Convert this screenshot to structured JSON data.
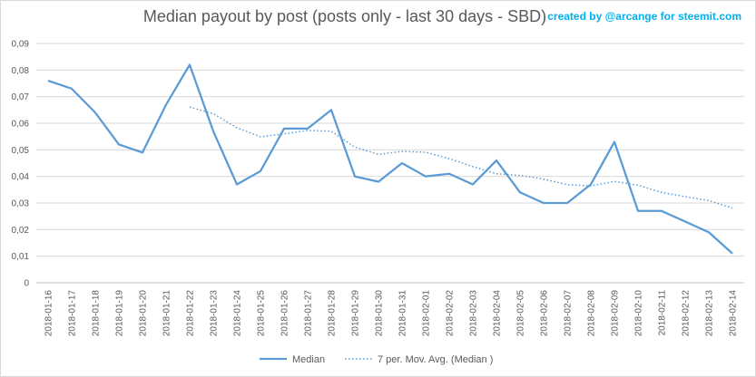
{
  "chart_data": {
    "type": "line",
    "title": "Median payout by post (posts only - last 30 days - SBD)",
    "credit": "created by @arcange for steemit.com",
    "x": [
      "2018-01-16",
      "2018-01-17",
      "2018-01-18",
      "2018-01-19",
      "2018-01-20",
      "2018-01-21",
      "2018-01-22",
      "2018-01-23",
      "2018-01-24",
      "2018-01-25",
      "2018-01-26",
      "2018-01-27",
      "2018-01-28",
      "2018-01-29",
      "2018-01-30",
      "2018-01-31",
      "2018-02-01",
      "2018-02-02",
      "2018-02-03",
      "2018-02-04",
      "2018-02-05",
      "2018-02-06",
      "2018-02-07",
      "2018-02-08",
      "2018-02-09",
      "2018-02-10",
      "2018-02-11",
      "2018-02-12",
      "2018-02-13",
      "2018-02-14"
    ],
    "yticks": [
      "0",
      "0,01",
      "0,02",
      "0,03",
      "0,04",
      "0,05",
      "0,06",
      "0,07",
      "0,08",
      "0,09"
    ],
    "ylim": [
      0,
      0.09
    ],
    "grid": true,
    "legend_position": "bottom",
    "series": [
      {
        "name": "Median",
        "style": "solid",
        "color": "#5b9bd5",
        "values": [
          0.076,
          0.073,
          0.064,
          0.052,
          0.049,
          0.067,
          0.082,
          0.057,
          0.037,
          0.042,
          0.058,
          0.058,
          0.065,
          0.04,
          0.038,
          0.045,
          0.04,
          0.041,
          0.037,
          0.046,
          0.034,
          0.03,
          0.03,
          0.037,
          0.053,
          0.027,
          0.027,
          0.023,
          0.019,
          0.011
        ]
      },
      {
        "name": "7 per. Mov. Avg. (Median )",
        "style": "dotted",
        "color": "#5b9bd5",
        "values": [
          null,
          null,
          null,
          null,
          null,
          null,
          0.0661,
          0.0636,
          0.0583,
          0.0549,
          0.056,
          0.0573,
          0.057,
          0.051,
          0.0483,
          0.0494,
          0.0491,
          0.0467,
          0.0437,
          0.041,
          0.0404,
          0.039,
          0.0369,
          0.0364,
          0.0381,
          0.0367,
          0.034,
          0.0324,
          0.0309,
          0.0281
        ]
      }
    ]
  }
}
